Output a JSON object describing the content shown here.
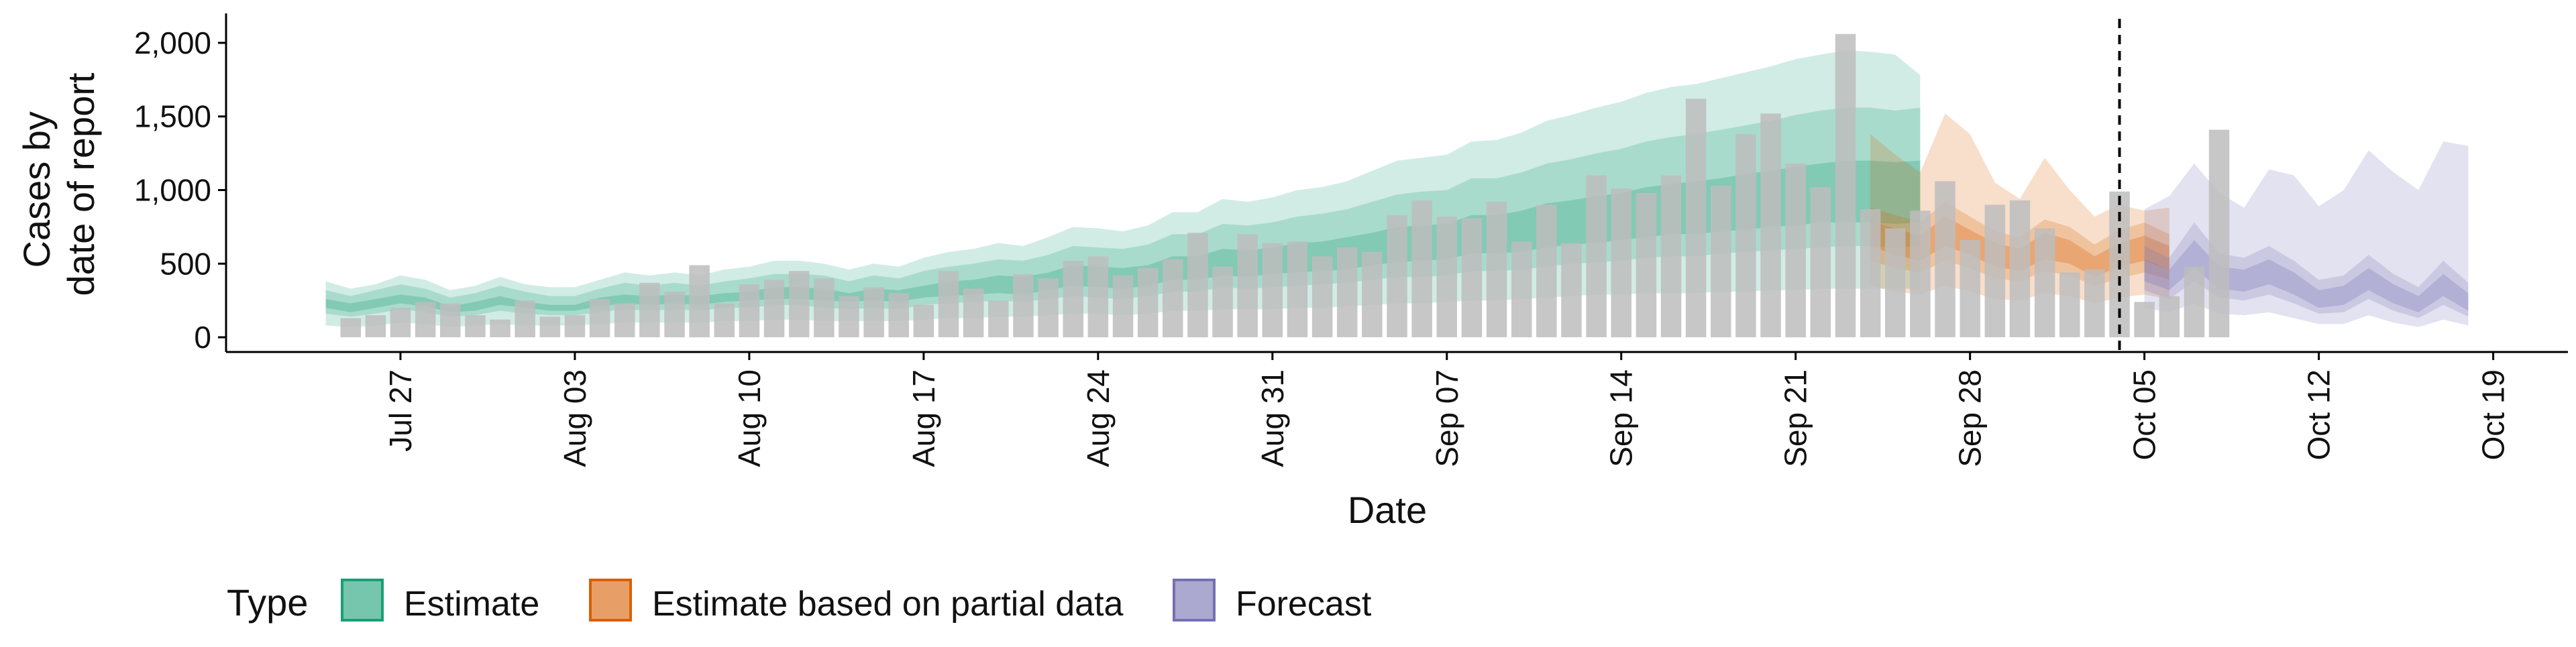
{
  "chart_data": {
    "type": "area",
    "xlabel": "Date",
    "ylabel_lines": [
      "Cases by",
      "date of report"
    ],
    "ylim": [
      -100,
      2200
    ],
    "y_ticks": [
      {
        "value": 0,
        "label": "0"
      },
      {
        "value": 500,
        "label": "500"
      },
      {
        "value": 1000,
        "label": "1,000"
      },
      {
        "value": 1500,
        "label": "1,500"
      },
      {
        "value": 2000,
        "label": "2,000"
      }
    ],
    "x_ticks": [
      {
        "date": "2020-07-27",
        "label": "Jul 27"
      },
      {
        "date": "2020-08-03",
        "label": "Aug 03"
      },
      {
        "date": "2020-08-10",
        "label": "Aug 10"
      },
      {
        "date": "2020-08-17",
        "label": "Aug 17"
      },
      {
        "date": "2020-08-24",
        "label": "Aug 24"
      },
      {
        "date": "2020-08-31",
        "label": "Aug 31"
      },
      {
        "date": "2020-09-07",
        "label": "Sep 07"
      },
      {
        "date": "2020-09-14",
        "label": "Sep 14"
      },
      {
        "date": "2020-09-21",
        "label": "Sep 21"
      },
      {
        "date": "2020-09-28",
        "label": "Sep 28"
      },
      {
        "date": "2020-10-05",
        "label": "Oct 05"
      },
      {
        "date": "2020-10-12",
        "label": "Oct 12"
      },
      {
        "date": "2020-10-19",
        "label": "Oct 19"
      }
    ],
    "x_range": [
      "2020-07-20",
      "2020-10-22"
    ],
    "grid": false,
    "vertical_line_date": "2020-10-04",
    "legend": {
      "title": "Type",
      "position": "bottom",
      "items": [
        {
          "label": "Estimate",
          "color": "#1B9E77"
        },
        {
          "label": "Estimate based on partial data",
          "color": "#D95F02"
        },
        {
          "label": "Forecast",
          "color": "#7570B3"
        }
      ]
    },
    "bars": {
      "start_date": "2020-07-25",
      "color": "#bdbdbd",
      "values": [
        130,
        150,
        200,
        240,
        230,
        150,
        120,
        250,
        140,
        150,
        260,
        230,
        370,
        310,
        490,
        230,
        360,
        390,
        450,
        400,
        280,
        340,
        300,
        220,
        450,
        330,
        250,
        430,
        400,
        520,
        550,
        420,
        470,
        530,
        710,
        480,
        700,
        640,
        650,
        550,
        610,
        580,
        830,
        930,
        820,
        810,
        920,
        650,
        900,
        640,
        1100,
        1010,
        980,
        1100,
        1620,
        1030,
        1380,
        1520,
        1180,
        1020,
        2060,
        870,
        740,
        860,
        1060,
        660,
        900,
        930,
        740,
        440,
        460,
        990,
        240,
        280,
        480,
        1410
      ]
    },
    "series": [
      {
        "name": "Estimate",
        "color": "#1B9E77",
        "start_date": "2020-07-24",
        "median": [
          230,
          200,
          230,
          260,
          240,
          190,
          210,
          250,
          220,
          200,
          200,
          240,
          260,
          250,
          260,
          250,
          270,
          280,
          300,
          300,
          290,
          270,
          290,
          280,
          310,
          330,
          340,
          360,
          350,
          380,
          420,
          410,
          400,
          420,
          470,
          470,
          510,
          500,
          520,
          540,
          550,
          570,
          600,
          630,
          640,
          650,
          700,
          700,
          720,
          760,
          780,
          800,
          820,
          850,
          870,
          880,
          900,
          920,
          940,
          960,
          980,
          990,
          990,
          980,
          990
        ],
        "q20": [
          200,
          170,
          200,
          230,
          210,
          170,
          180,
          220,
          200,
          180,
          180,
          210,
          230,
          220,
          230,
          220,
          240,
          250,
          260,
          260,
          250,
          240,
          250,
          240,
          270,
          280,
          290,
          300,
          290,
          320,
          350,
          340,
          330,
          350,
          390,
          390,
          420,
          410,
          430,
          440,
          450,
          460,
          490,
          510,
          520,
          530,
          570,
          570,
          580,
          610,
          630,
          640,
          660,
          680,
          700,
          700,
          720,
          730,
          750,
          760,
          780,
          780,
          780,
          770,
          780
        ],
        "q80": [
          260,
          230,
          260,
          290,
          270,
          210,
          240,
          280,
          240,
          220,
          220,
          270,
          290,
          280,
          290,
          280,
          300,
          310,
          340,
          340,
          330,
          300,
          330,
          320,
          350,
          380,
          390,
          420,
          410,
          440,
          490,
          480,
          470,
          490,
          550,
          550,
          600,
          590,
          610,
          640,
          650,
          680,
          710,
          750,
          760,
          770,
          830,
          830,
          860,
          910,
          930,
          960,
          980,
          1020,
          1040,
          1060,
          1080,
          1110,
          1130,
          1160,
          1180,
          1200,
          1200,
          1190,
          1200
        ],
        "q10": [
          160,
          140,
          160,
          190,
          170,
          140,
          150,
          180,
          160,
          150,
          150,
          170,
          190,
          180,
          190,
          180,
          200,
          200,
          220,
          220,
          200,
          190,
          200,
          190,
          220,
          230,
          240,
          250,
          240,
          260,
          280,
          270,
          260,
          280,
          310,
          310,
          340,
          330,
          340,
          350,
          360,
          370,
          390,
          410,
          410,
          420,
          450,
          450,
          460,
          480,
          500,
          510,
          520,
          540,
          550,
          550,
          570,
          580,
          590,
          600,
          610,
          620,
          620,
          610,
          620
        ],
        "q90": [
          320,
          280,
          320,
          360,
          330,
          270,
          300,
          350,
          310,
          280,
          280,
          330,
          370,
          350,
          370,
          350,
          380,
          400,
          430,
          430,
          420,
          380,
          420,
          400,
          450,
          480,
          500,
          530,
          520,
          560,
          620,
          610,
          600,
          630,
          700,
          700,
          770,
          760,
          780,
          820,
          840,
          870,
          920,
          970,
          990,
          1000,
          1080,
          1080,
          1120,
          1180,
          1210,
          1250,
          1280,
          1330,
          1360,
          1380,
          1410,
          1440,
          1470,
          1510,
          1540,
          1560,
          1560,
          1540,
          1560
        ],
        "q025": [
          80,
          70,
          80,
          100,
          90,
          70,
          80,
          90,
          80,
          80,
          80,
          90,
          100,
          100,
          100,
          100,
          110,
          110,
          120,
          120,
          110,
          110,
          110,
          110,
          120,
          130,
          130,
          140,
          140,
          150,
          160,
          160,
          150,
          160,
          180,
          180,
          190,
          190,
          190,
          200,
          200,
          210,
          220,
          230,
          230,
          240,
          250,
          250,
          260,
          270,
          280,
          290,
          290,
          300,
          300,
          300,
          310,
          310,
          320,
          320,
          330,
          330,
          330,
          330,
          330
        ],
        "q975": [
          380,
          330,
          360,
          420,
          390,
          320,
          350,
          410,
          360,
          340,
          340,
          390,
          440,
          420,
          440,
          420,
          460,
          480,
          520,
          520,
          500,
          460,
          500,
          480,
          540,
          580,
          600,
          640,
          620,
          680,
          750,
          740,
          720,
          760,
          850,
          850,
          940,
          920,
          950,
          1000,
          1020,
          1060,
          1130,
          1200,
          1220,
          1240,
          1330,
          1340,
          1390,
          1470,
          1510,
          1560,
          1600,
          1660,
          1700,
          1720,
          1760,
          1800,
          1840,
          1890,
          1920,
          1950,
          1940,
          1920,
          1780
        ]
      },
      {
        "name": "Estimate based on partial data",
        "color": "#D95F02",
        "start_date": "2020-09-24",
        "median": [
          700,
          650,
          600,
          720,
          640,
          560,
          520,
          620,
          580,
          480,
          560,
          600,
          540
        ],
        "q20": [
          620,
          560,
          520,
          620,
          560,
          480,
          450,
          530,
          500,
          410,
          480,
          520,
          460
        ],
        "q80": [
          790,
          740,
          690,
          820,
          730,
          640,
          600,
          710,
          660,
          550,
          640,
          690,
          620
        ],
        "q10": [
          520,
          470,
          440,
          520,
          470,
          400,
          380,
          450,
          420,
          350,
          400,
          440,
          390
        ],
        "q90": [
          880,
          830,
          780,
          920,
          820,
          720,
          680,
          800,
          750,
          630,
          730,
          780,
          700
        ],
        "q025": [
          350,
          310,
          290,
          350,
          310,
          260,
          250,
          300,
          280,
          230,
          270,
          290,
          260
        ],
        "q975": [
          1380,
          1240,
          1120,
          1520,
          1380,
          1050,
          940,
          1220,
          1000,
          820,
          900,
          860,
          880
        ]
      },
      {
        "name": "Forecast",
        "color": "#7570B3",
        "start_date": "2020-10-05",
        "median": [
          450,
          380,
          560,
          400,
          380,
          440,
          360,
          260,
          280,
          390,
          290,
          220,
          350,
          240
        ],
        "q20": [
          380,
          320,
          470,
          330,
          310,
          360,
          290,
          200,
          220,
          320,
          230,
          170,
          280,
          180
        ],
        "q80": [
          530,
          460,
          660,
          480,
          460,
          530,
          440,
          320,
          350,
          470,
          360,
          280,
          430,
          300
        ],
        "q10": [
          320,
          260,
          380,
          270,
          250,
          290,
          230,
          160,
          170,
          260,
          180,
          130,
          220,
          140
        ],
        "q90": [
          620,
          540,
          780,
          570,
          540,
          620,
          520,
          390,
          420,
          560,
          430,
          340,
          520,
          370
        ],
        "q025": [
          200,
          170,
          230,
          160,
          150,
          170,
          130,
          90,
          90,
          150,
          100,
          70,
          120,
          80
        ],
        "q975": [
          870,
          960,
          1180,
          980,
          880,
          1140,
          1100,
          890,
          1000,
          1270,
          1120,
          1000,
          1330,
          1300
        ]
      }
    ]
  }
}
